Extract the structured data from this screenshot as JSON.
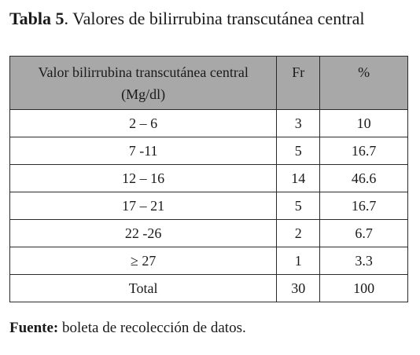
{
  "title": {
    "label": "Tabla 5",
    "text": ". Valores de bilirrubina transcutánea central"
  },
  "table": {
    "headers": {
      "value_line1": "Valor bilirrubina transcutánea central",
      "value_line2": "(Mg/dl)",
      "fr": "Fr",
      "pct": "%"
    },
    "rows": [
      {
        "range": "2 – 6",
        "fr": "3",
        "pct": "10"
      },
      {
        "range": "7 -11",
        "fr": "5",
        "pct": "16.7"
      },
      {
        "range": "12 – 16",
        "fr": "14",
        "pct": "46.6"
      },
      {
        "range": "17 – 21",
        "fr": "5",
        "pct": "16.7"
      },
      {
        "range": "22 -26",
        "fr": "2",
        "pct": "6.7"
      },
      {
        "range": "≥ 27",
        "fr": "1",
        "pct": "3.3"
      },
      {
        "range": "Total",
        "fr": "30",
        "pct": "100"
      }
    ],
    "header_bg": "#a8a8a8"
  },
  "source": {
    "label": "Fuente:",
    "text": " boleta de recolección de datos."
  }
}
